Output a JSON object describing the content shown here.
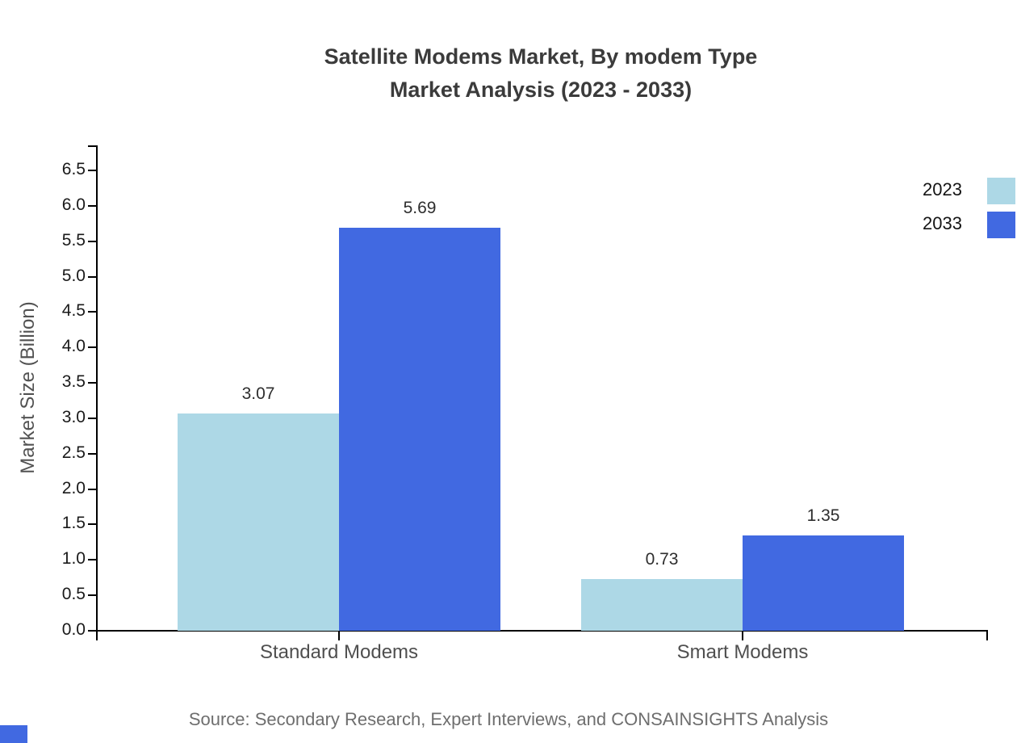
{
  "title": {
    "line1": "Satellite Modems Market, By modem Type",
    "line2": "Market Analysis (2023 - 2033)"
  },
  "source": "Source: Secondary Research, Expert Interviews, and CONSAINSIGHTS Analysis",
  "chart_data": {
    "type": "bar",
    "title": "Satellite Modems Market, By modem Type Market Analysis (2023 - 2033)",
    "categories": [
      "Standard Modems",
      "Smart Modems"
    ],
    "series": [
      {
        "name": "2023",
        "color": "#ADD8E6",
        "values": [
          3.07,
          0.73
        ]
      },
      {
        "name": "2033",
        "color": "#4169E1",
        "values": [
          5.69,
          1.35
        ]
      }
    ],
    "xlabel": "",
    "ylabel": "Market Size (Billion)",
    "ylim": [
      0,
      6.5
    ],
    "ytick_step": 0.5,
    "grid": false,
    "legend_position": "top-right",
    "value_label_decimals": 2
  },
  "colors": {
    "series_2023": "#ADD8E6",
    "series_2033": "#4169E1",
    "axis": "#000000",
    "title_text": "#3b3b3b",
    "tick_text": "#1a1a1a",
    "category_text": "#4f4f4f",
    "value_text": "#2e2e2e",
    "legend_text": "#141414",
    "source_text": "#6e6e6e",
    "corner_mark": "#4169E1"
  }
}
